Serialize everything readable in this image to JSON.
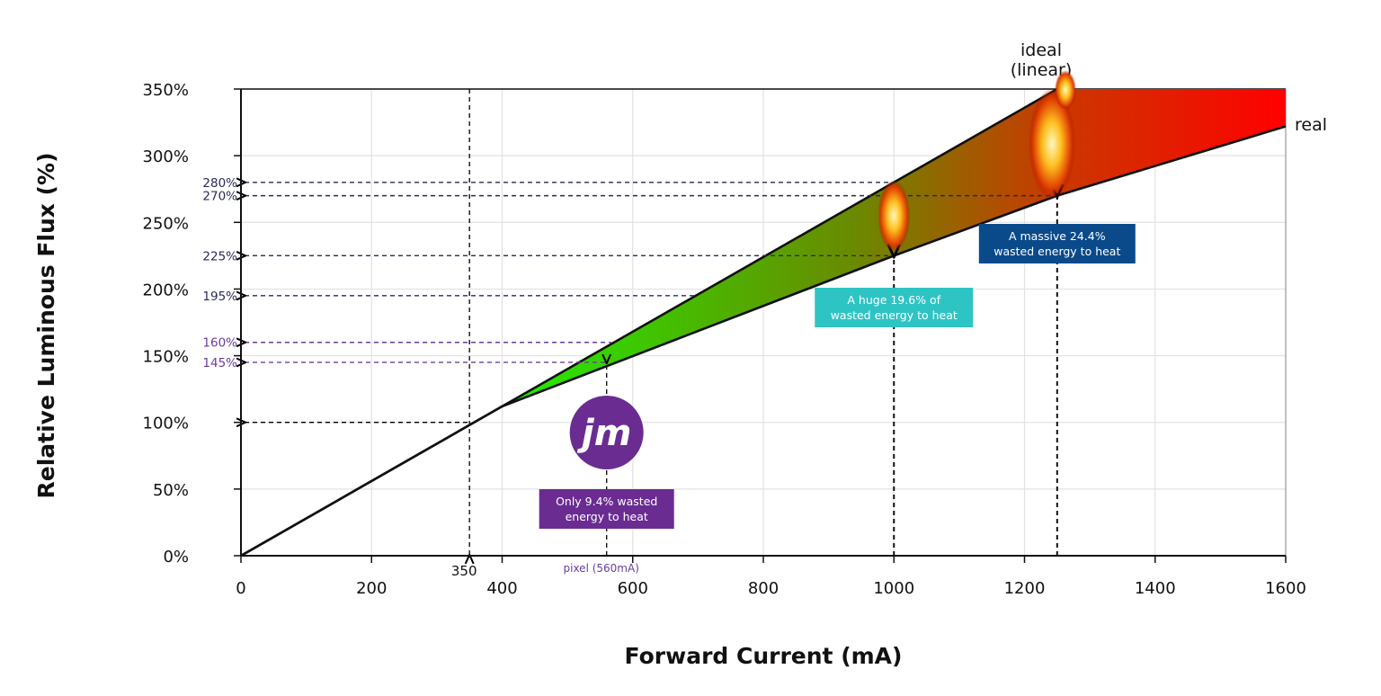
{
  "chart_data": {
    "type": "line",
    "xlabel": "Forward Current (mA)",
    "ylabel": "Relative Luminous Flux (%)",
    "xlim": [
      0,
      1600
    ],
    "ylim": [
      0,
      350
    ],
    "grid": true,
    "x_ticks": [
      0,
      200,
      400,
      600,
      800,
      1000,
      1200,
      1400,
      1600
    ],
    "y_ticks": [
      0,
      50,
      100,
      150,
      200,
      250,
      300,
      350
    ],
    "y_tick_labels": [
      "0%",
      "50%",
      "100%",
      "150%",
      "200%",
      "250%",
      "300%",
      "350%"
    ],
    "series": [
      {
        "name": "ideal (linear)",
        "label_lines": [
          "ideal",
          "(linear)"
        ],
        "x": [
          0,
          1250
        ],
        "y": [
          0,
          350
        ]
      },
      {
        "name": "real",
        "label_lines": [
          "real"
        ],
        "x": [
          0,
          400,
          1000,
          1250,
          1600
        ],
        "y": [
          0,
          112,
          225,
          270,
          322
        ]
      }
    ],
    "fill_between": {
      "from_x": 400,
      "colors": [
        "#22ee00",
        "#ff0000"
      ]
    },
    "reference_lines": [
      {
        "label": "280%",
        "y": 280,
        "x": 1000,
        "color": "#2a2a5a"
      },
      {
        "label": "270%",
        "y": 270,
        "x": 1250,
        "color": "#2a2a5a"
      },
      {
        "label": "225%",
        "y": 225,
        "x": 1000,
        "color": "#2a2a5a"
      },
      {
        "label": "195%",
        "y": 195,
        "x": 695,
        "color": "#2a2a5a"
      },
      {
        "label": "160%",
        "y": 160,
        "x": 567,
        "color": "#6a3d9a"
      },
      {
        "label": "145%",
        "y": 145,
        "x": 560,
        "color": "#6a3d9a"
      },
      {
        "label": "",
        "y": 100,
        "x": 350,
        "color": "#000000"
      }
    ],
    "vertical_markers": [
      {
        "label": "350",
        "x": 350,
        "y_from": 350,
        "y_to": 0,
        "direction": "down"
      },
      {
        "label": "pixel (560mA)",
        "x": 560,
        "y_from": 0,
        "y_to": 145,
        "direction": "up"
      },
      {
        "label": "",
        "x": 1000,
        "y_from": 0,
        "y_to": 225,
        "direction": "up"
      },
      {
        "label": "",
        "x": 1250,
        "y_from": 0,
        "y_to": 270,
        "direction": "up"
      }
    ],
    "annotations": [
      {
        "lines": [
          "Only 9.4% wasted",
          "energy to heat"
        ],
        "x": 560,
        "color": "#6a2c91"
      },
      {
        "lines": [
          "A huge 19.6% of",
          "wasted energy to heat"
        ],
        "x": 1000,
        "color": "#2ec4c4"
      },
      {
        "lines": [
          "A massive 24.4%",
          "wasted energy to heat"
        ],
        "x": 1250,
        "color": "#0a4a8a"
      }
    ],
    "logo": {
      "text": "jm",
      "color": "#6a2c91"
    }
  }
}
